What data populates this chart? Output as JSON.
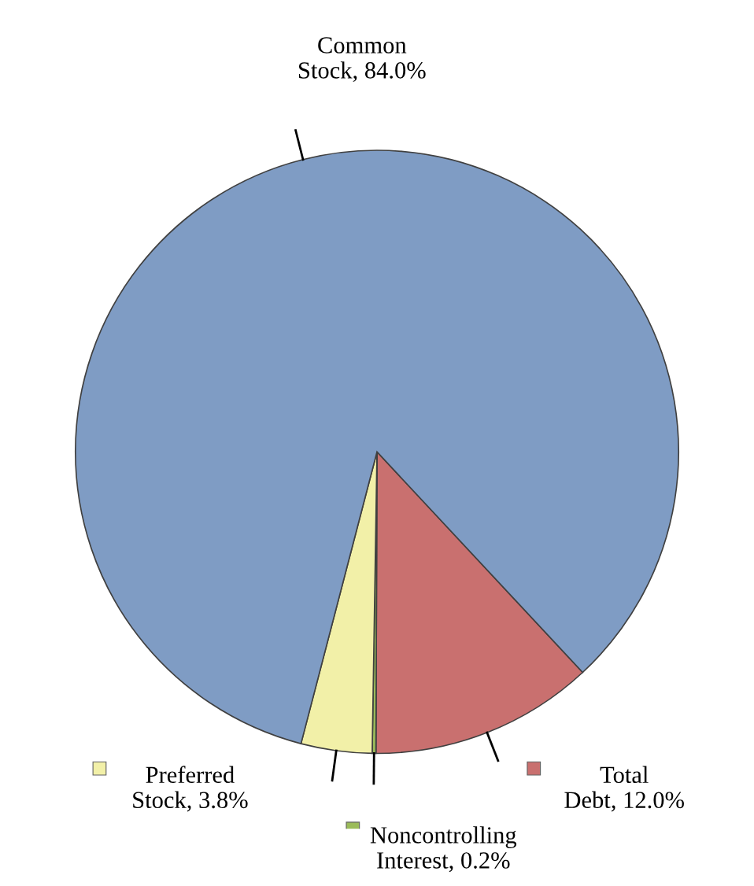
{
  "chart_data": {
    "type": "pie",
    "categories": [
      "Total Debt",
      "Noncontrolling Interest",
      "Preferred Stock",
      "Common Stock"
    ],
    "values": [
      12.0,
      0.2,
      3.8,
      84.0
    ],
    "value_labels": [
      "12.0%",
      "0.2%",
      "3.8%",
      "84.0%"
    ],
    "legend": "bottom",
    "colors": [
      "#c9706f",
      "#9bbb59",
      "#f2f0a8",
      "#7f9cc4"
    ]
  }
}
